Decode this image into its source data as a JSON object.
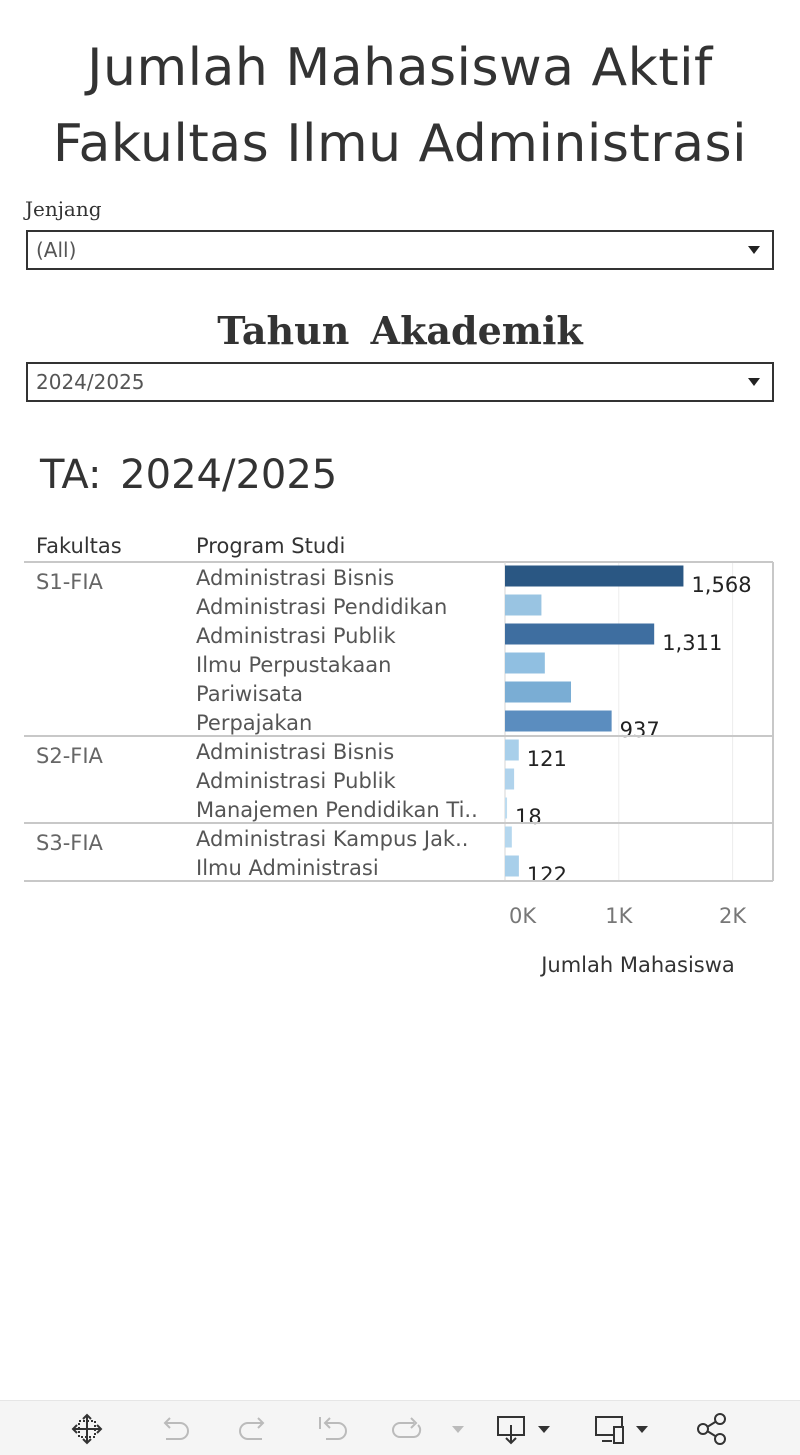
{
  "header": {
    "title_line1": "Jumlah Mahasiswa Aktif",
    "title_line2": "Fakultas Ilmu Administrasi"
  },
  "filters": {
    "jenjang_label": "Jenjang",
    "jenjang_value": "(All)",
    "tahun_label": "Tahun  Akademik",
    "tahun_value": "2024/2025"
  },
  "sheet": {
    "ta_title": "TA:  2024/2025"
  },
  "chart_data": {
    "type": "bar",
    "orientation": "horizontal",
    "column_headers": [
      "Fakultas",
      "Program Studi"
    ],
    "xlabel": "Jumlah Mahasiswa",
    "xlim": [
      0,
      2400
    ],
    "x_ticks": [
      0,
      1000,
      2000
    ],
    "x_tick_labels": [
      "0K",
      "1K",
      "2K"
    ],
    "grid": "vertical",
    "groups": [
      {
        "name": "S1-FIA",
        "rows": [
          {
            "label": "Administrasi Bisnis",
            "value": 1568,
            "data_label": "1,568",
            "color": "#2a5783"
          },
          {
            "label": "Administrasi Pendidikan",
            "value": 320,
            "data_label": "",
            "color": "#99c4e2"
          },
          {
            "label": "Administrasi Publik",
            "value": 1311,
            "data_label": "1,311",
            "color": "#3e6ea0"
          },
          {
            "label": "Ilmu Perpustakaan",
            "value": 350,
            "data_label": "",
            "color": "#90bfe1"
          },
          {
            "label": "Pariwisata",
            "value": 580,
            "data_label": "",
            "color": "#7aadd4"
          },
          {
            "label": "Perpajakan",
            "value": 937,
            "data_label": "937",
            "color": "#5b8dbf"
          }
        ]
      },
      {
        "name": "S2-FIA",
        "rows": [
          {
            "label": "Administrasi Bisnis",
            "value": 121,
            "data_label": "121",
            "color": "#a8cfea"
          },
          {
            "label": "Administrasi Publik",
            "value": 80,
            "data_label": "",
            "color": "#b0d3ec"
          },
          {
            "label": "Manajemen Pendidikan Ti..",
            "value": 18,
            "data_label": "18",
            "color": "#bddcf0"
          }
        ]
      },
      {
        "name": "S3-FIA",
        "rows": [
          {
            "label": "Administrasi Kampus Jak..",
            "value": 60,
            "data_label": "",
            "color": "#b5d7ee"
          },
          {
            "label": "Ilmu Administrasi",
            "value": 122,
            "data_label": "122",
            "color": "#a8cfea"
          }
        ]
      }
    ]
  },
  "toolbar": {
    "icons": [
      "pan-icon",
      "undo-icon",
      "redo-icon",
      "revert-icon",
      "refresh-icon",
      "dropdown-icon",
      "download-icon",
      "device-layout-icon",
      "share-icon"
    ]
  }
}
